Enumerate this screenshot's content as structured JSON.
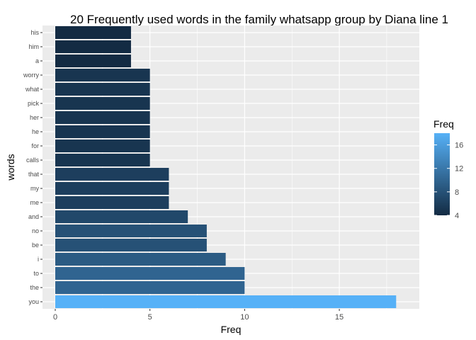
{
  "chart_data": {
    "type": "bar",
    "orientation": "horizontal",
    "title": "20 Frequently used words in the family whatsapp group by Diana line 1",
    "xlabel": "Freq",
    "ylabel": "words",
    "categories": [
      "his",
      "him",
      "a",
      "worry",
      "what",
      "pick",
      "her",
      "he",
      "for",
      "calls",
      "that",
      "my",
      "me",
      "and",
      "no",
      "be",
      "i",
      "to",
      "the",
      "you"
    ],
    "values": [
      4,
      4,
      4,
      5,
      5,
      5,
      5,
      5,
      5,
      5,
      6,
      6,
      6,
      7,
      8,
      8,
      9,
      10,
      10,
      18
    ],
    "xlim": [
      0,
      19
    ],
    "xticks": [
      0,
      5,
      10,
      15
    ],
    "grid": true,
    "legend": {
      "title": "Freq",
      "placement": "right",
      "ticks": [
        4,
        8,
        12,
        16
      ],
      "range": [
        4,
        18
      ],
      "color_low": "#132B43",
      "color_high": "#56B1F7"
    },
    "panel_background": "#EBEBEB",
    "grid_color": "#FFFFFF"
  }
}
